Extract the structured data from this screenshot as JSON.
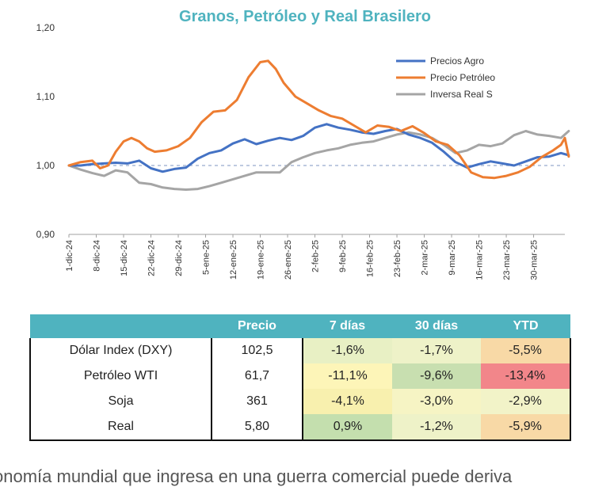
{
  "chart_data": {
    "type": "line",
    "title": "Granos, Petróleo y Real Brasilero",
    "ylim": [
      0.9,
      1.2
    ],
    "y_ticks": [
      "0,90",
      "1,00",
      "1,10",
      "1,20"
    ],
    "reference_line": 1.0,
    "x_tick_labels": [
      "1-dic-24",
      "8-dic-24",
      "15-dic-24",
      "22-dic-24",
      "29-dic-24",
      "5-ene-25",
      "12-ene-25",
      "19-ene-25",
      "26-ene-25",
      "2-feb-25",
      "9-feb-25",
      "16-feb-25",
      "23-feb-25",
      "2-mar-25",
      "9-mar-25",
      "16-mar-25",
      "23-mar-25",
      "30-mar-25"
    ],
    "x_range_days": [
      0,
      127
    ],
    "legend_position": "top-right",
    "series": [
      {
        "name": "Precios Agro",
        "color": "#4472c4",
        "points": [
          [
            0,
            1.0
          ],
          [
            3,
            1.0
          ],
          [
            6,
            1.002
          ],
          [
            9,
            1.003
          ],
          [
            12,
            1.004
          ],
          [
            15,
            1.003
          ],
          [
            18,
            1.007
          ],
          [
            21,
            0.996
          ],
          [
            24,
            0.991
          ],
          [
            27,
            0.995
          ],
          [
            30,
            0.997
          ],
          [
            33,
            1.01
          ],
          [
            36,
            1.018
          ],
          [
            39,
            1.022
          ],
          [
            42,
            1.032
          ],
          [
            45,
            1.038
          ],
          [
            48,
            1.031
          ],
          [
            51,
            1.036
          ],
          [
            54,
            1.04
          ],
          [
            57,
            1.037
          ],
          [
            60,
            1.043
          ],
          [
            63,
            1.055
          ],
          [
            66,
            1.06
          ],
          [
            69,
            1.055
          ],
          [
            72,
            1.052
          ],
          [
            75,
            1.048
          ],
          [
            78,
            1.046
          ],
          [
            81,
            1.05
          ],
          [
            84,
            1.053
          ],
          [
            87,
            1.045
          ],
          [
            90,
            1.04
          ],
          [
            93,
            1.033
          ],
          [
            96,
            1.02
          ],
          [
            99,
            1.005
          ],
          [
            102,
            0.997
          ],
          [
            105,
            1.002
          ],
          [
            108,
            1.006
          ],
          [
            111,
            1.003
          ],
          [
            114,
            1.0
          ],
          [
            117,
            1.006
          ],
          [
            120,
            1.012
          ],
          [
            123,
            1.013
          ],
          [
            126,
            1.018
          ],
          [
            128,
            1.015
          ]
        ]
      },
      {
        "name": "Precio Petróleo",
        "color": "#ed7d31",
        "points": [
          [
            0,
            1.0
          ],
          [
            3,
            1.005
          ],
          [
            6,
            1.007
          ],
          [
            8,
            0.996
          ],
          [
            10,
            1.0
          ],
          [
            12,
            1.02
          ],
          [
            14,
            1.035
          ],
          [
            16,
            1.04
          ],
          [
            18,
            1.035
          ],
          [
            20,
            1.025
          ],
          [
            22,
            1.02
          ],
          [
            25,
            1.022
          ],
          [
            28,
            1.028
          ],
          [
            31,
            1.04
          ],
          [
            34,
            1.063
          ],
          [
            37,
            1.078
          ],
          [
            40,
            1.08
          ],
          [
            43,
            1.095
          ],
          [
            46,
            1.128
          ],
          [
            49,
            1.15
          ],
          [
            51,
            1.152
          ],
          [
            53,
            1.14
          ],
          [
            55,
            1.12
          ],
          [
            58,
            1.1
          ],
          [
            61,
            1.09
          ],
          [
            64,
            1.08
          ],
          [
            67,
            1.072
          ],
          [
            70,
            1.068
          ],
          [
            73,
            1.058
          ],
          [
            76,
            1.048
          ],
          [
            79,
            1.058
          ],
          [
            82,
            1.056
          ],
          [
            85,
            1.05
          ],
          [
            88,
            1.057
          ],
          [
            91,
            1.047
          ],
          [
            94,
            1.035
          ],
          [
            97,
            1.03
          ],
          [
            100,
            1.015
          ],
          [
            103,
            0.99
          ],
          [
            106,
            0.983
          ],
          [
            109,
            0.982
          ],
          [
            112,
            0.985
          ],
          [
            115,
            0.99
          ],
          [
            118,
            0.998
          ],
          [
            121,
            1.012
          ],
          [
            124,
            1.022
          ],
          [
            126,
            1.03
          ],
          [
            127,
            1.04
          ],
          [
            128,
            1.013
          ]
        ]
      },
      {
        "name": "Inversa Real S",
        "color": "#a5a5a5",
        "points": [
          [
            0,
            1.0
          ],
          [
            3,
            0.994
          ],
          [
            6,
            0.989
          ],
          [
            9,
            0.985
          ],
          [
            12,
            0.993
          ],
          [
            15,
            0.99
          ],
          [
            18,
            0.975
          ],
          [
            21,
            0.973
          ],
          [
            24,
            0.968
          ],
          [
            27,
            0.966
          ],
          [
            30,
            0.965
          ],
          [
            33,
            0.966
          ],
          [
            36,
            0.97
          ],
          [
            39,
            0.975
          ],
          [
            42,
            0.98
          ],
          [
            45,
            0.985
          ],
          [
            48,
            0.99
          ],
          [
            51,
            0.99
          ],
          [
            54,
            0.99
          ],
          [
            57,
            1.005
          ],
          [
            60,
            1.012
          ],
          [
            63,
            1.018
          ],
          [
            66,
            1.022
          ],
          [
            69,
            1.025
          ],
          [
            72,
            1.03
          ],
          [
            75,
            1.033
          ],
          [
            78,
            1.035
          ],
          [
            81,
            1.04
          ],
          [
            84,
            1.045
          ],
          [
            87,
            1.048
          ],
          [
            90,
            1.045
          ],
          [
            93,
            1.04
          ],
          [
            96,
            1.03
          ],
          [
            99,
            1.018
          ],
          [
            102,
            1.022
          ],
          [
            105,
            1.03
          ],
          [
            108,
            1.028
          ],
          [
            111,
            1.032
          ],
          [
            114,
            1.044
          ],
          [
            117,
            1.05
          ],
          [
            120,
            1.045
          ],
          [
            123,
            1.043
          ],
          [
            126,
            1.04
          ],
          [
            128,
            1.05
          ]
        ]
      }
    ]
  },
  "table": {
    "headers": [
      "",
      "Precio",
      "7 días",
      "30 días",
      "YTD"
    ],
    "rows": [
      {
        "label": "Dólar Index (DXY)",
        "price": "102,5",
        "d7": "-1,6%",
        "d30": "-1,7%",
        "ytd": "-5,5%",
        "colors": [
          "#e8f0c4",
          "#eef2c8",
          "#f8d9a6"
        ]
      },
      {
        "label": "Petróleo WTI",
        "price": "61,7",
        "d7": "-11,1%",
        "d30": "-9,6%",
        "ytd": "-13,4%",
        "colors": [
          "#fdf5b8",
          "#c8dfb0",
          "#f2868a"
        ]
      },
      {
        "label": "Soja",
        "price": "361",
        "d7": "-4,1%",
        "d30": "-3,0%",
        "ytd": "-2,9%",
        "colors": [
          "#f8f0ae",
          "#f6f4c4",
          "#f2f3c8"
        ]
      },
      {
        "label": "Real",
        "price": "5,80",
        "d7": "0,9%",
        "d30": "-1,2%",
        "ytd": "-5,9%",
        "colors": [
          "#c4dfae",
          "#eef2c8",
          "#f8d9a6"
        ]
      }
    ]
  },
  "footer": {
    "text": "onomía mundial que ingresa en una guerra comercial puede deriva"
  }
}
